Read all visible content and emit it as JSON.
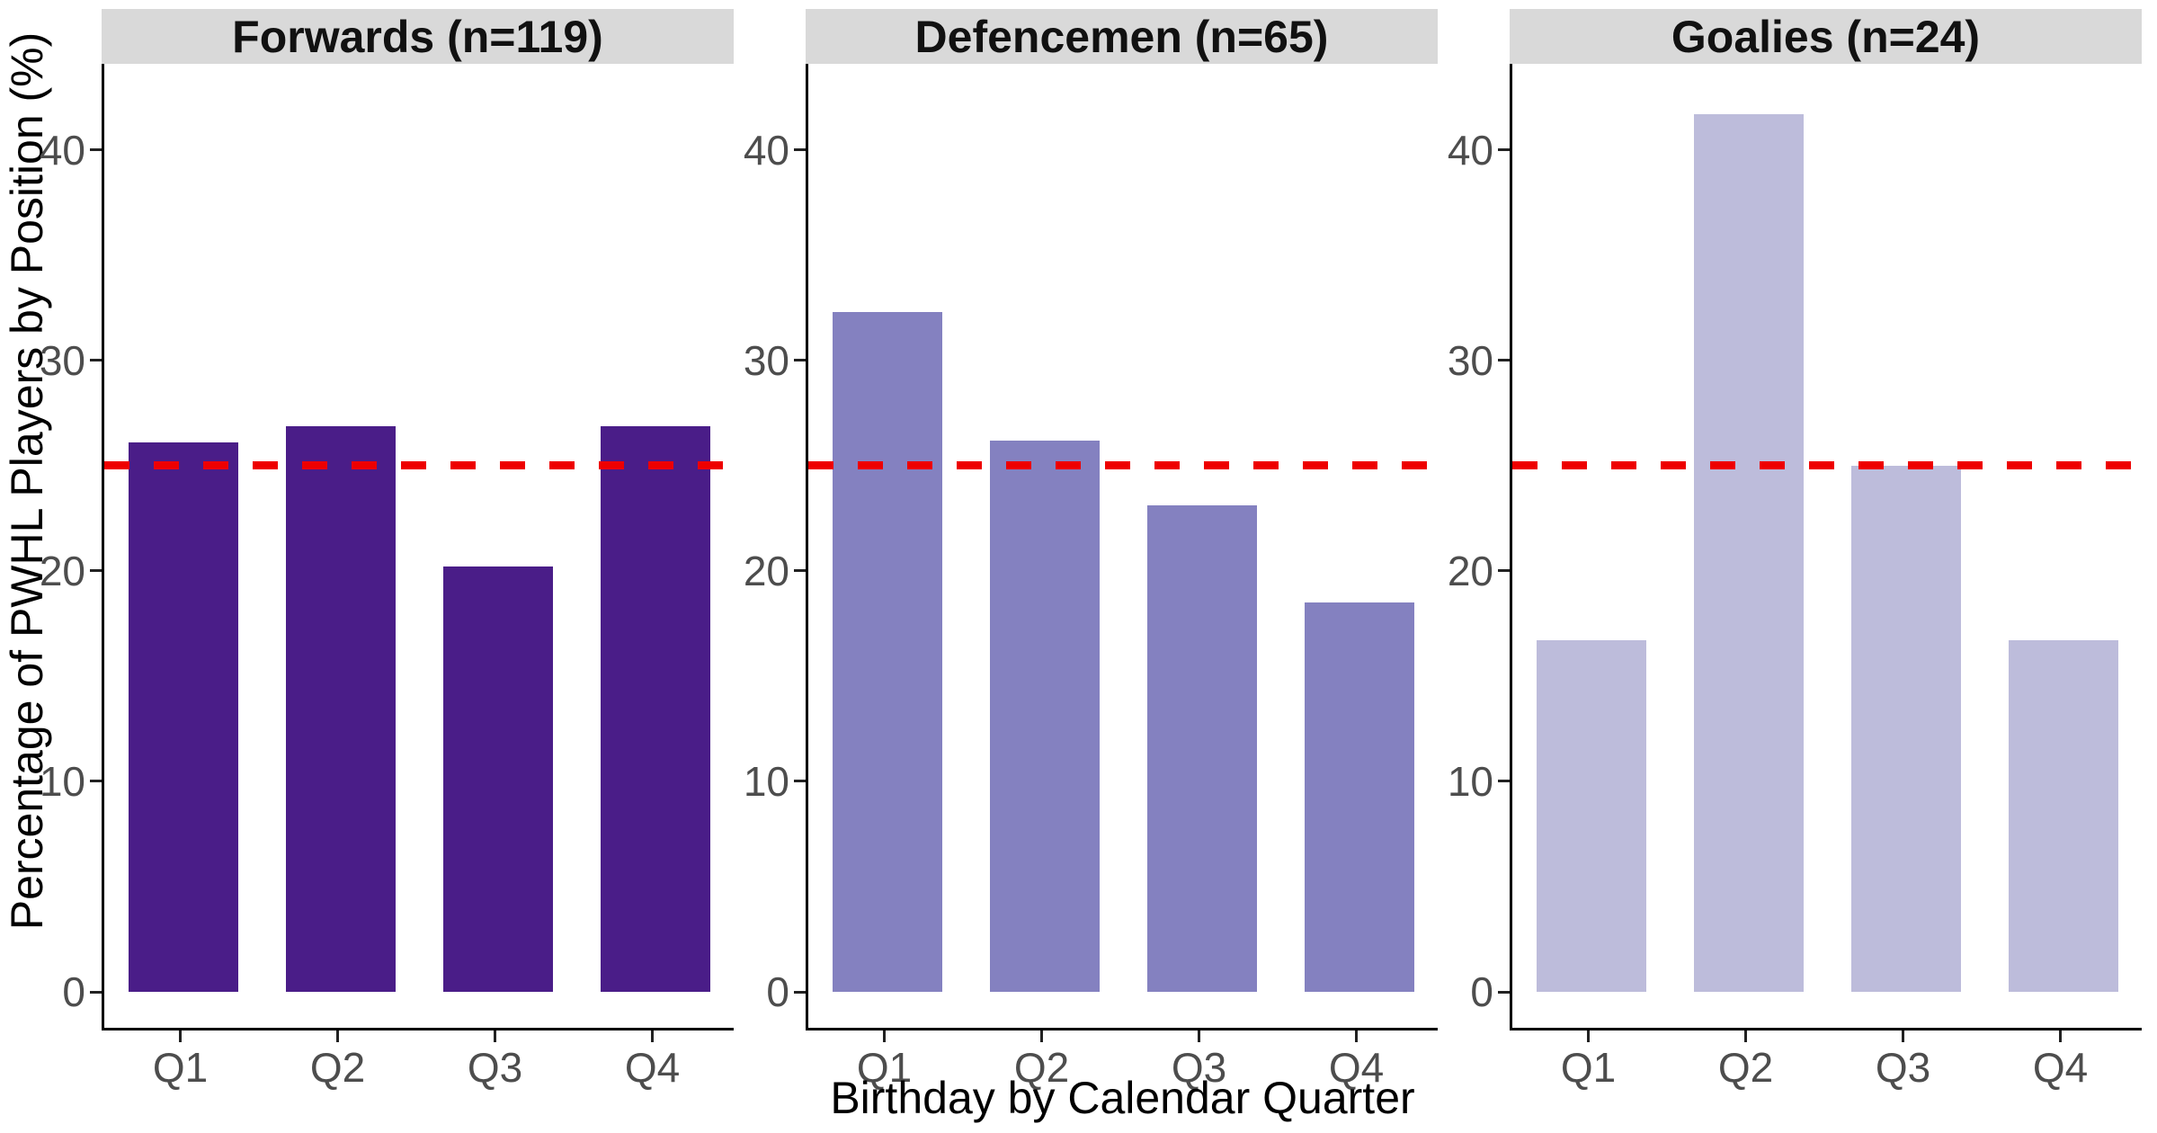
{
  "figure": {
    "kind": "faceted bar chart",
    "background": "#ffffff"
  },
  "chart_data": {
    "type": "bar",
    "title": "",
    "xlabel": "Birthday by Calendar Quarter",
    "ylabel": "Percentage of PWHL Players by Position (%)",
    "categories": [
      "Q1",
      "Q2",
      "Q3",
      "Q4"
    ],
    "y_ticks": [
      0,
      10,
      20,
      30,
      40
    ],
    "ylim": [
      0,
      44.1
    ],
    "grid": false,
    "legend_position": "none",
    "panels": [
      {
        "title": "Forwards (n=119)",
        "bar_color": "#4a1d88",
        "values": [
          26.1,
          26.9,
          20.2,
          26.9
        ]
      },
      {
        "title": "Defencemen (n=65)",
        "bar_color": "#8481c0",
        "values": [
          32.3,
          26.2,
          23.1,
          18.5
        ]
      },
      {
        "title": "Goalies (n=24)",
        "bar_color": "#bdbcdb",
        "values": [
          16.7,
          41.7,
          25.0,
          16.7
        ]
      }
    ],
    "reference_line": {
      "value": 25,
      "color": "#ee0000",
      "style": "dashed"
    }
  },
  "style": {
    "strip_background": "#d9d9d9",
    "tick_label_color": "#4d4d4d",
    "axis_line_color": "#000000"
  }
}
